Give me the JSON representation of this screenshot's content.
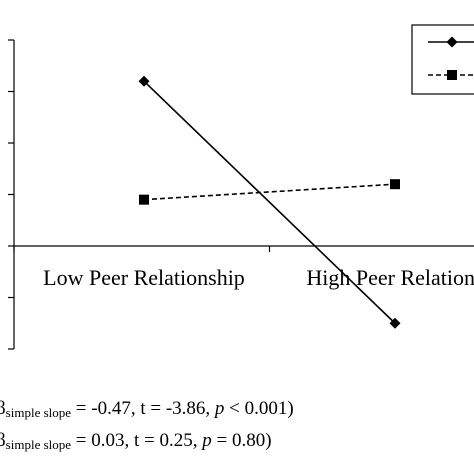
{
  "chart_data": {
    "type": "line",
    "categories": [
      "Low Peer Relationship",
      "High Peer Relations"
    ],
    "series": [
      {
        "marker": "diamond",
        "line": "solid",
        "values": [
          1.6,
          -0.75
        ]
      },
      {
        "marker": "square",
        "line": "dashed",
        "values": [
          0.45,
          0.6
        ]
      }
    ],
    "ylim": [
      -1.0,
      2.0
    ],
    "grid": false,
    "legend": "top-right",
    "colors": {
      "line": "#000000",
      "background": "#ffffff"
    }
  },
  "annotations": [
    {
      "symbol": "β",
      "subscript": "simple slope",
      "text_before_p": "= -0.47, t = -3.86,",
      "p_label": "p",
      "text_after_p": "< 0.001)"
    },
    {
      "symbol": "β",
      "subscript": "simple slope",
      "text_before_p": "= 0.03, t = 0.25,",
      "p_label": "p",
      "text_after_p": "= 0.80)"
    }
  ]
}
